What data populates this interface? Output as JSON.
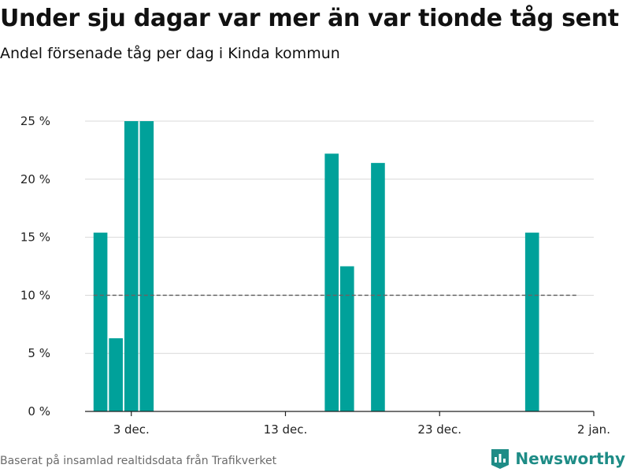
{
  "header": {
    "title": "Under sju dagar var mer än var tionde tåg sent",
    "subtitle": "Andel försenade tåg per dag i Kinda kommun"
  },
  "footer": {
    "source": "Baserat på insamlad realtidsdata från Trafikverket",
    "brand": "Newsworthy"
  },
  "colors": {
    "bar": "#00a19a",
    "grid": "#d8d8d8",
    "reference_line": "#666666",
    "brand": "#1e8c86"
  },
  "chart_data": {
    "type": "bar",
    "title": "Under sju dagar var mer än var tionde tåg sent",
    "subtitle": "Andel försenade tåg per dag i Kinda kommun",
    "x_ticks": [
      "3 dec.",
      "13 dec.",
      "23 dec.",
      "2 jan."
    ],
    "y_ticks": [
      "0 %",
      "5 %",
      "10 %",
      "15 %",
      "20 %",
      "25 %"
    ],
    "y_tick_values": [
      0,
      5,
      10,
      15,
      20,
      25
    ],
    "ylim": [
      0,
      25
    ],
    "xlim": [
      "2019-11-30",
      "2020-01-02"
    ],
    "x": [
      "2019-12-01",
      "2019-12-02",
      "2019-12-03",
      "2019-12-04",
      "2019-12-16",
      "2019-12-17",
      "2019-12-19",
      "2019-12-29"
    ],
    "values": [
      15.4,
      6.3,
      25,
      25,
      22.2,
      12.5,
      21.4,
      15.4
    ],
    "reference_line": {
      "y": 10,
      "style": "dashed",
      "from": "2019-12-01",
      "to": "2020-01-01"
    },
    "grid": true,
    "legend": "none"
  }
}
